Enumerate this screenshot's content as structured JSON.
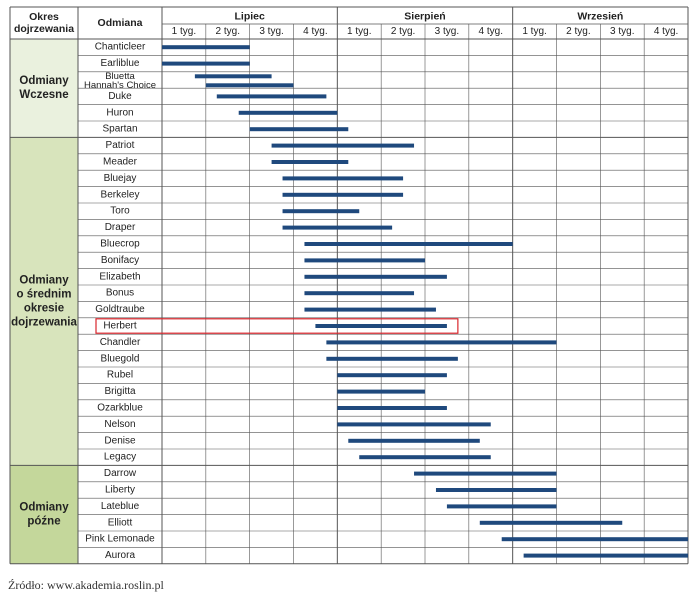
{
  "chart_data": {
    "type": "gantt",
    "title": "",
    "headers": {
      "period": "Okres dojrzewania",
      "variety": "Odmiana"
    },
    "months": [
      {
        "name": "Lipiec",
        "weeks": [
          "1 tyg.",
          "2 tyg.",
          "3 tyg.",
          "4 tyg."
        ]
      },
      {
        "name": "Sierpień",
        "weeks": [
          "1 tyg.",
          "2 tyg.",
          "3 tyg.",
          "4 tyg."
        ]
      },
      {
        "name": "Wrzesień",
        "weeks": [
          "1 tyg.",
          "2 tyg.",
          "3 tyg.",
          "4 tyg."
        ]
      }
    ],
    "x_unit": "week",
    "x_range": [
      0,
      12
    ],
    "groups": [
      {
        "label": "Odmiany\nWczesne",
        "color": "#eaf1de"
      },
      {
        "label": "Odmiany\no średnim\nokresie\ndojrzewania",
        "color": "#d8e4bc"
      },
      {
        "label": "Odmiany\npóźne",
        "color": "#c4d79b"
      }
    ],
    "rows": [
      {
        "group": 0,
        "names": [
          "Chanticleer"
        ],
        "start": 0,
        "end": 2
      },
      {
        "group": 0,
        "names": [
          "Earliblue"
        ],
        "start": 0,
        "end": 2
      },
      {
        "group": 0,
        "names": [
          "Bluetta",
          "Hannah's Choice"
        ],
        "bars": [
          {
            "start": 0.75,
            "end": 2.5
          },
          {
            "start": 1.0,
            "end": 3.0
          }
        ]
      },
      {
        "group": 0,
        "names": [
          "Duke"
        ],
        "start": 1.25,
        "end": 3.75
      },
      {
        "group": 0,
        "names": [
          "Huron"
        ],
        "start": 1.75,
        "end": 4.0
      },
      {
        "group": 0,
        "names": [
          "Spartan"
        ],
        "start": 2.0,
        "end": 4.25
      },
      {
        "group": 1,
        "names": [
          "Patriot"
        ],
        "start": 2.5,
        "end": 5.75
      },
      {
        "group": 1,
        "names": [
          "Meader"
        ],
        "start": 2.5,
        "end": 4.25
      },
      {
        "group": 1,
        "names": [
          "Bluejay"
        ],
        "start": 2.75,
        "end": 5.5
      },
      {
        "group": 1,
        "names": [
          "Berkeley"
        ],
        "start": 2.75,
        "end": 5.5
      },
      {
        "group": 1,
        "names": [
          "Toro"
        ],
        "start": 2.75,
        "end": 4.5
      },
      {
        "group": 1,
        "names": [
          "Draper"
        ],
        "start": 2.75,
        "end": 5.25
      },
      {
        "group": 1,
        "names": [
          "Bluecrop"
        ],
        "start": 3.25,
        "end": 8.0
      },
      {
        "group": 1,
        "names": [
          "Bonifacy"
        ],
        "start": 3.25,
        "end": 6.0
      },
      {
        "group": 1,
        "names": [
          "Elizabeth"
        ],
        "start": 3.25,
        "end": 6.5
      },
      {
        "group": 1,
        "names": [
          "Bonus"
        ],
        "start": 3.25,
        "end": 5.75
      },
      {
        "group": 1,
        "names": [
          "Goldtraube"
        ],
        "start": 3.25,
        "end": 6.25
      },
      {
        "group": 1,
        "names": [
          "Herbert"
        ],
        "start": 3.5,
        "end": 6.5,
        "highlight": true
      },
      {
        "group": 1,
        "names": [
          "Chandler"
        ],
        "start": 3.75,
        "end": 9.0
      },
      {
        "group": 1,
        "names": [
          "Bluegold"
        ],
        "start": 3.75,
        "end": 6.75
      },
      {
        "group": 1,
        "names": [
          "Rubel"
        ],
        "start": 4.0,
        "end": 6.5
      },
      {
        "group": 1,
        "names": [
          "Brigitta"
        ],
        "start": 4.0,
        "end": 6.0
      },
      {
        "group": 1,
        "names": [
          "Ozarkblue"
        ],
        "start": 4.0,
        "end": 6.5
      },
      {
        "group": 1,
        "names": [
          "Nelson"
        ],
        "start": 4.0,
        "end": 7.5
      },
      {
        "group": 1,
        "names": [
          "Denise"
        ],
        "start": 4.25,
        "end": 7.25
      },
      {
        "group": 1,
        "names": [
          "Legacy"
        ],
        "start": 4.5,
        "end": 7.5
      },
      {
        "group": 2,
        "names": [
          "Darrow"
        ],
        "start": 5.75,
        "end": 9.0
      },
      {
        "group": 2,
        "names": [
          "Liberty"
        ],
        "start": 6.25,
        "end": 9.0
      },
      {
        "group": 2,
        "names": [
          "Lateblue"
        ],
        "start": 6.5,
        "end": 9.0
      },
      {
        "group": 2,
        "names": [
          "Elliott"
        ],
        "start": 7.25,
        "end": 10.5
      },
      {
        "group": 2,
        "names": [
          "Pink Lemonade"
        ],
        "start": 7.75,
        "end": 12.0
      },
      {
        "group": 2,
        "names": [
          "Aurora"
        ],
        "start": 8.25,
        "end": 12.0
      }
    ],
    "colors": {
      "bar": "#1f497d",
      "highlight": "#d9262c",
      "grid": "#555555"
    }
  },
  "source": "Źródło: www.akademia.roslin.pl"
}
